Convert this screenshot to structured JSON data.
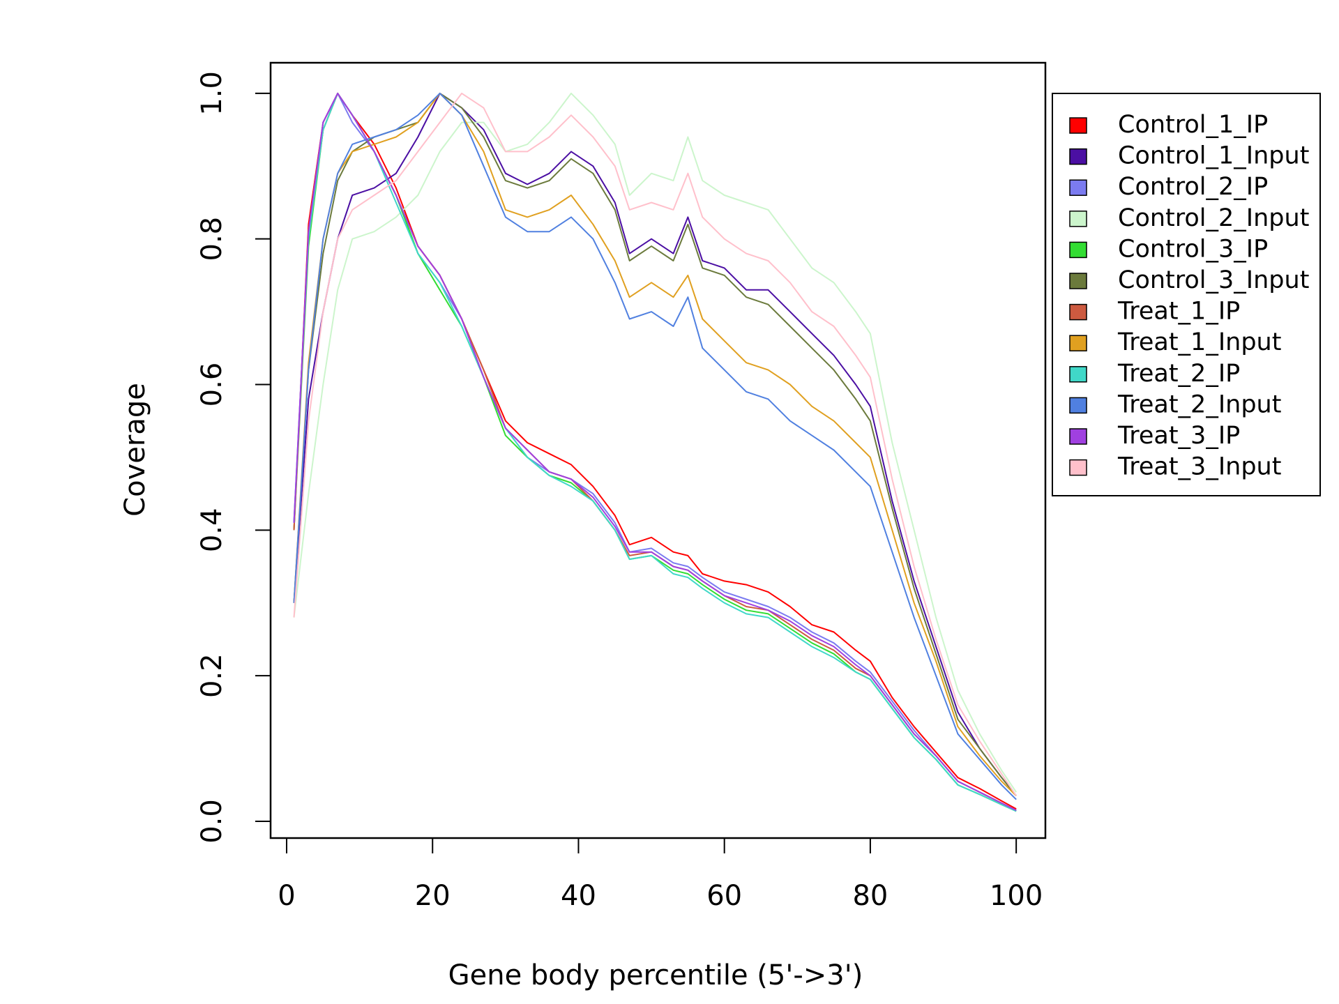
{
  "chart_data": {
    "type": "line",
    "x_label": "Gene body percentile (5'->3')",
    "y_label": "Coverage",
    "x": [
      1,
      3,
      5,
      7,
      9,
      12,
      15,
      18,
      21,
      24,
      27,
      30,
      33,
      36,
      39,
      42,
      45,
      47,
      50,
      53,
      55,
      57,
      60,
      63,
      66,
      69,
      72,
      75,
      78,
      80,
      83,
      86,
      89,
      92,
      95,
      98,
      100
    ],
    "xlim": [
      -2.2,
      104
    ],
    "ylim": [
      -0.023,
      1.042
    ],
    "xticks": [
      0,
      20,
      40,
      60,
      80,
      100
    ],
    "yticks": [
      {
        "value": 0,
        "label": "0.0"
      },
      0.2,
      0.4,
      0.6,
      0.8,
      {
        "value": 1,
        "label": "1.0"
      }
    ],
    "legend": "right",
    "series": [
      {
        "name": "Control_1_IP",
        "color": "#ff0000",
        "values": [
          0.4,
          0.82,
          0.96,
          1.0,
          0.97,
          0.93,
          0.87,
          0.79,
          0.75,
          0.69,
          0.62,
          0.55,
          0.52,
          0.505,
          0.49,
          0.46,
          0.42,
          0.38,
          0.39,
          0.37,
          0.365,
          0.34,
          0.33,
          0.325,
          0.315,
          0.295,
          0.27,
          0.26,
          0.235,
          0.22,
          0.17,
          0.13,
          0.095,
          0.06,
          0.045,
          0.028,
          0.017
        ]
      },
      {
        "name": "Control_1_Input",
        "color": "#4b0fa3",
        "values": [
          0.3,
          0.58,
          0.7,
          0.8,
          0.86,
          0.87,
          0.89,
          0.94,
          1.0,
          0.98,
          0.95,
          0.89,
          0.875,
          0.89,
          0.92,
          0.9,
          0.85,
          0.78,
          0.8,
          0.78,
          0.83,
          0.77,
          0.76,
          0.73,
          0.73,
          0.7,
          0.67,
          0.64,
          0.6,
          0.57,
          0.44,
          0.33,
          0.24,
          0.15,
          0.1,
          0.06,
          0.035
        ]
      },
      {
        "name": "Control_2_IP",
        "color": "#7b7bf0",
        "values": [
          0.41,
          0.81,
          0.96,
          1.0,
          0.96,
          0.92,
          0.86,
          0.78,
          0.74,
          0.69,
          0.61,
          0.54,
          0.5,
          0.48,
          0.47,
          0.45,
          0.41,
          0.37,
          0.375,
          0.355,
          0.35,
          0.335,
          0.315,
          0.305,
          0.295,
          0.28,
          0.26,
          0.245,
          0.22,
          0.205,
          0.165,
          0.125,
          0.09,
          0.055,
          0.04,
          0.025,
          0.015
        ]
      },
      {
        "name": "Control_2_Input",
        "color": "#ccf5cc",
        "values": [
          0.28,
          0.45,
          0.6,
          0.73,
          0.8,
          0.81,
          0.83,
          0.86,
          0.92,
          0.96,
          0.96,
          0.92,
          0.93,
          0.96,
          1.0,
          0.97,
          0.93,
          0.86,
          0.89,
          0.88,
          0.94,
          0.88,
          0.86,
          0.85,
          0.84,
          0.8,
          0.76,
          0.74,
          0.7,
          0.67,
          0.52,
          0.4,
          0.28,
          0.18,
          0.12,
          0.07,
          0.04
        ]
      },
      {
        "name": "Control_3_IP",
        "color": "#33dd33",
        "values": [
          0.4,
          0.79,
          0.95,
          1.0,
          0.97,
          0.92,
          0.86,
          0.78,
          0.73,
          0.68,
          0.61,
          0.53,
          0.5,
          0.475,
          0.465,
          0.44,
          0.4,
          0.36,
          0.365,
          0.345,
          0.34,
          0.325,
          0.305,
          0.29,
          0.285,
          0.265,
          0.245,
          0.23,
          0.205,
          0.195,
          0.155,
          0.115,
          0.085,
          0.05,
          0.037,
          0.023,
          0.014
        ]
      },
      {
        "name": "Control_3_Input",
        "color": "#6b7a3c",
        "values": [
          0.3,
          0.62,
          0.78,
          0.88,
          0.92,
          0.94,
          0.95,
          0.96,
          1.0,
          0.98,
          0.94,
          0.88,
          0.87,
          0.88,
          0.91,
          0.89,
          0.84,
          0.77,
          0.79,
          0.77,
          0.82,
          0.76,
          0.75,
          0.72,
          0.71,
          0.68,
          0.65,
          0.62,
          0.58,
          0.55,
          0.43,
          0.32,
          0.23,
          0.14,
          0.1,
          0.06,
          0.035
        ]
      },
      {
        "name": "Treat_1_IP",
        "color": "#cd5a40",
        "values": [
          0.4,
          0.8,
          0.95,
          1.0,
          0.97,
          0.92,
          0.86,
          0.79,
          0.75,
          0.69,
          0.62,
          0.54,
          0.51,
          0.48,
          0.47,
          0.44,
          0.4,
          0.365,
          0.37,
          0.35,
          0.345,
          0.33,
          0.31,
          0.295,
          0.29,
          0.27,
          0.25,
          0.235,
          0.21,
          0.2,
          0.16,
          0.12,
          0.09,
          0.055,
          0.04,
          0.025,
          0.015
        ]
      },
      {
        "name": "Treat_1_Input",
        "color": "#e0a020",
        "values": [
          0.3,
          0.63,
          0.8,
          0.89,
          0.92,
          0.93,
          0.94,
          0.96,
          1.0,
          0.97,
          0.92,
          0.84,
          0.83,
          0.84,
          0.86,
          0.82,
          0.77,
          0.72,
          0.74,
          0.72,
          0.75,
          0.69,
          0.66,
          0.63,
          0.62,
          0.6,
          0.57,
          0.55,
          0.52,
          0.5,
          0.4,
          0.3,
          0.22,
          0.13,
          0.09,
          0.055,
          0.035
        ]
      },
      {
        "name": "Treat_2_IP",
        "color": "#40d8c8",
        "values": [
          0.41,
          0.8,
          0.95,
          1.0,
          0.97,
          0.92,
          0.85,
          0.78,
          0.74,
          0.68,
          0.61,
          0.54,
          0.5,
          0.475,
          0.46,
          0.44,
          0.4,
          0.36,
          0.365,
          0.34,
          0.335,
          0.32,
          0.3,
          0.285,
          0.28,
          0.26,
          0.24,
          0.225,
          0.205,
          0.195,
          0.155,
          0.115,
          0.085,
          0.05,
          0.037,
          0.023,
          0.014
        ]
      },
      {
        "name": "Treat_2_Input",
        "color": "#5080e0",
        "values": [
          0.3,
          0.62,
          0.8,
          0.89,
          0.93,
          0.94,
          0.95,
          0.97,
          1.0,
          0.97,
          0.9,
          0.83,
          0.81,
          0.81,
          0.83,
          0.8,
          0.74,
          0.69,
          0.7,
          0.68,
          0.72,
          0.65,
          0.62,
          0.59,
          0.58,
          0.55,
          0.53,
          0.51,
          0.48,
          0.46,
          0.37,
          0.28,
          0.2,
          0.12,
          0.085,
          0.05,
          0.03
        ]
      },
      {
        "name": "Treat_3_IP",
        "color": "#a040e0",
        "values": [
          0.41,
          0.81,
          0.96,
          1.0,
          0.97,
          0.92,
          0.86,
          0.79,
          0.75,
          0.69,
          0.61,
          0.54,
          0.51,
          0.48,
          0.47,
          0.445,
          0.405,
          0.37,
          0.37,
          0.35,
          0.345,
          0.33,
          0.31,
          0.3,
          0.29,
          0.275,
          0.255,
          0.24,
          0.215,
          0.2,
          0.16,
          0.12,
          0.09,
          0.055,
          0.04,
          0.025,
          0.015
        ]
      },
      {
        "name": "Treat_3_Input",
        "color": "#ffc0cb",
        "values": [
          0.28,
          0.55,
          0.7,
          0.8,
          0.84,
          0.86,
          0.88,
          0.92,
          0.96,
          1.0,
          0.98,
          0.92,
          0.92,
          0.94,
          0.97,
          0.94,
          0.9,
          0.84,
          0.85,
          0.84,
          0.89,
          0.83,
          0.8,
          0.78,
          0.77,
          0.74,
          0.7,
          0.68,
          0.64,
          0.61,
          0.47,
          0.35,
          0.25,
          0.16,
          0.11,
          0.065,
          0.035
        ]
      }
    ]
  }
}
